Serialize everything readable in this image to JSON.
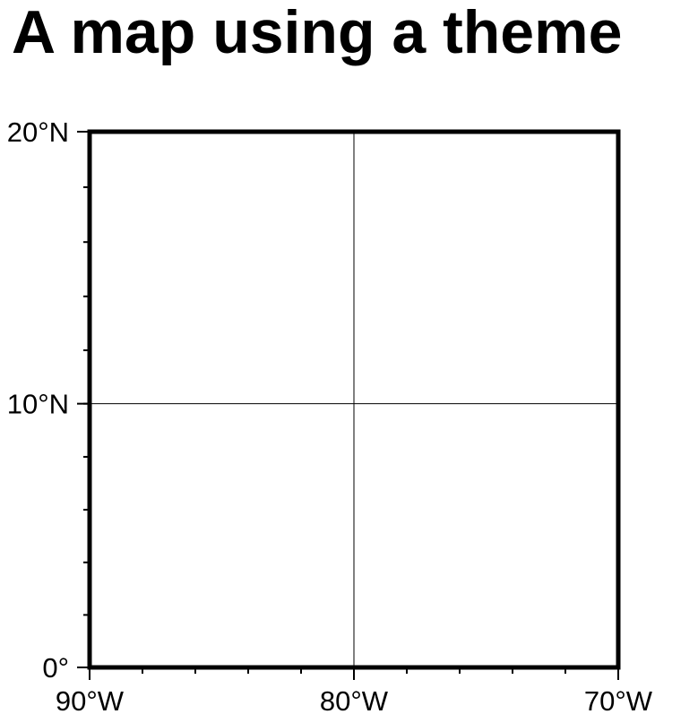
{
  "map": {
    "title": "A map using a theme",
    "projection": "mercator",
    "region": {
      "lon_min": -90,
      "lon_max": -70,
      "lat_min": 0,
      "lat_max": 20
    },
    "frame_color": "#000000",
    "background_color": "#ffffff",
    "gridlines": {
      "longitudes": [
        -80
      ],
      "latitudes": [
        10
      ]
    },
    "lon_ticks": [
      {
        "value": -90,
        "label": "90°W"
      },
      {
        "value": -80,
        "label": "80°W"
      },
      {
        "value": -70,
        "label": "70°W"
      }
    ],
    "lat_ticks": [
      {
        "value": 0,
        "label": "0°"
      },
      {
        "value": 10,
        "label": "10°N"
      },
      {
        "value": 20,
        "label": "20°N"
      }
    ],
    "minor_tick_step": 2
  }
}
